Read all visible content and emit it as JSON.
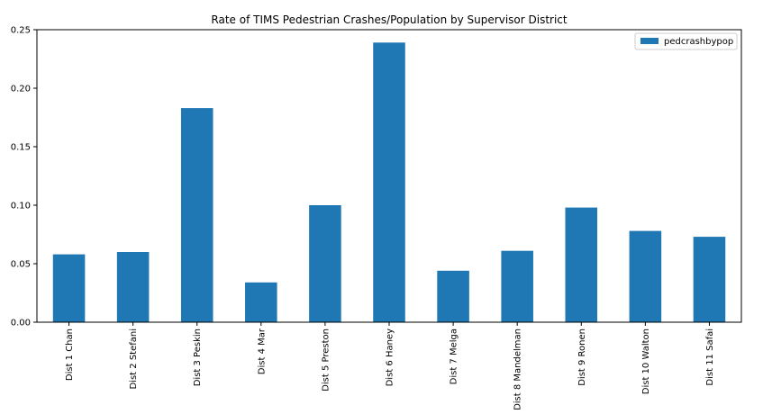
{
  "chart_data": {
    "type": "bar",
    "title": "Rate of TIMS Pedestrian Crashes/Population by Supervisor District",
    "xlabel": "",
    "ylabel": "",
    "categories": [
      "Dist 1 Chan",
      "Dist 2 Stefani",
      "Dist 3 Peskin",
      "Dist 4 Mar",
      "Dist 5 Preston",
      "Dist 6 Haney",
      "Dist 7 Melga",
      "Dist 8 Mandelman",
      "Dist 9 Ronen",
      "Dist 10 Walton",
      "Dist 11 Safai"
    ],
    "series": [
      {
        "name": "pedcrashbypop",
        "color": "#1f77b4",
        "values": [
          0.058,
          0.06,
          0.183,
          0.034,
          0.1,
          0.239,
          0.044,
          0.061,
          0.098,
          0.078,
          0.073
        ]
      }
    ],
    "ylim": [
      0,
      0.25
    ],
    "yticks": [
      "0.00",
      "0.05",
      "0.10",
      "0.15",
      "0.20",
      "0.25"
    ],
    "grid": false,
    "legend_position": "top-right"
  }
}
